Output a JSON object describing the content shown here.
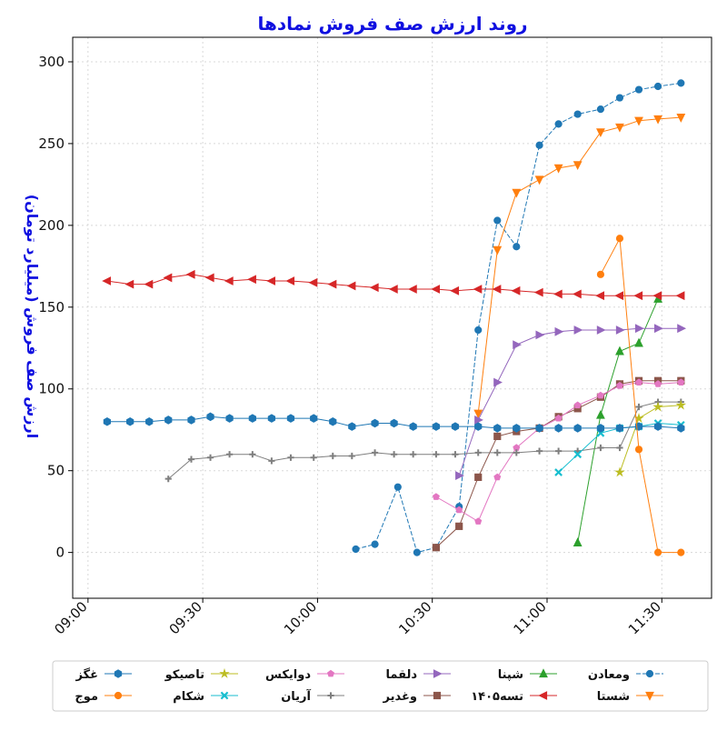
{
  "chart_data": {
    "type": "line",
    "title": "روند ارزش صف فروش نمادها",
    "ylabel": "ارزش صف فروش (میلیارد تومان)",
    "xlabel": "",
    "ylim": [
      -28,
      315
    ],
    "xlim": [
      "08:56",
      "11:43"
    ],
    "x_ticks": [
      "09:00",
      "09:30",
      "10:00",
      "10:30",
      "11:00",
      "11:30"
    ],
    "y_ticks": [
      0,
      50,
      100,
      150,
      200,
      250,
      300
    ],
    "grid": true,
    "legend_position": "bottom",
    "series": [
      {
        "name": "ومعادن",
        "color": "#1f77b4",
        "marker": "circle",
        "dashed": true,
        "points": [
          [
            "10:10",
            2
          ],
          [
            "10:15",
            5
          ],
          [
            "10:21",
            40
          ],
          [
            "10:26",
            0
          ],
          [
            "10:31",
            3
          ],
          [
            "10:37",
            28
          ],
          [
            "10:42",
            136
          ],
          [
            "10:47",
            203
          ],
          [
            "10:52",
            187
          ],
          [
            "10:58",
            249
          ],
          [
            "11:03",
            262
          ],
          [
            "11:08",
            268
          ],
          [
            "11:14",
            271
          ],
          [
            "11:19",
            278
          ],
          [
            "11:24",
            283
          ],
          [
            "11:29",
            285
          ],
          [
            "11:35",
            287
          ]
        ]
      },
      {
        "name": "شستا",
        "color": "#ff7f0e",
        "marker": "triangle-down",
        "dashed": false,
        "points": [
          [
            "10:42",
            85
          ],
          [
            "10:47",
            185
          ],
          [
            "10:52",
            220
          ],
          [
            "10:58",
            228
          ],
          [
            "11:03",
            235
          ],
          [
            "11:08",
            237
          ],
          [
            "11:14",
            257
          ],
          [
            "11:19",
            260
          ],
          [
            "11:24",
            264
          ],
          [
            "11:29",
            265
          ],
          [
            "11:35",
            266
          ]
        ]
      },
      {
        "name": "شپنا",
        "color": "#2ca02c",
        "marker": "triangle-up",
        "dashed": false,
        "points": [
          [
            "11:08",
            6
          ],
          [
            "11:14",
            84
          ],
          [
            "11:19",
            123
          ],
          [
            "11:24",
            128
          ],
          [
            "11:29",
            155
          ]
        ]
      },
      {
        "name": "تسه۱۴۰۵",
        "color": "#d62728",
        "marker": "triangle-left",
        "dashed": false,
        "points": [
          [
            "09:05",
            166
          ],
          [
            "09:11",
            164
          ],
          [
            "09:16",
            164
          ],
          [
            "09:21",
            168
          ],
          [
            "09:27",
            170
          ],
          [
            "09:32",
            168
          ],
          [
            "09:37",
            166
          ],
          [
            "09:43",
            167
          ],
          [
            "09:48",
            166
          ],
          [
            "09:53",
            166
          ],
          [
            "09:59",
            165
          ],
          [
            "10:04",
            164
          ],
          [
            "10:09",
            163
          ],
          [
            "10:15",
            162
          ],
          [
            "10:20",
            161
          ],
          [
            "10:25",
            161
          ],
          [
            "10:31",
            161
          ],
          [
            "10:36",
            160
          ],
          [
            "10:42",
            161
          ],
          [
            "10:47",
            161
          ],
          [
            "10:52",
            160
          ],
          [
            "10:58",
            159
          ],
          [
            "11:03",
            158
          ],
          [
            "11:08",
            158
          ],
          [
            "11:14",
            157
          ],
          [
            "11:19",
            157
          ],
          [
            "11:24",
            157
          ],
          [
            "11:29",
            157
          ],
          [
            "11:35",
            157
          ]
        ]
      },
      {
        "name": "دلقما",
        "color": "#9467bd",
        "marker": "triangle-right",
        "dashed": false,
        "points": [
          [
            "10:37",
            47
          ],
          [
            "10:42",
            81
          ],
          [
            "10:47",
            104
          ],
          [
            "10:52",
            127
          ],
          [
            "10:58",
            133
          ],
          [
            "11:03",
            135
          ],
          [
            "11:08",
            136
          ],
          [
            "11:14",
            136
          ],
          [
            "11:19",
            136
          ],
          [
            "11:24",
            137
          ],
          [
            "11:29",
            137
          ],
          [
            "11:35",
            137
          ]
        ]
      },
      {
        "name": "وغدیر",
        "color": "#8c564b",
        "marker": "square",
        "dashed": false,
        "points": [
          [
            "10:31",
            3
          ],
          [
            "10:37",
            16
          ],
          [
            "10:42",
            46
          ],
          [
            "10:47",
            71
          ],
          [
            "10:52",
            74
          ],
          [
            "10:58",
            76
          ],
          [
            "11:03",
            83
          ],
          [
            "11:08",
            88
          ],
          [
            "11:14",
            95
          ],
          [
            "11:19",
            103
          ],
          [
            "11:24",
            105
          ],
          [
            "11:29",
            105
          ],
          [
            "11:35",
            105
          ]
        ]
      },
      {
        "name": "دوایکس",
        "color": "#e377c2",
        "marker": "pentagon",
        "dashed": false,
        "points": [
          [
            "10:31",
            34
          ],
          [
            "10:37",
            26
          ],
          [
            "10:42",
            19
          ],
          [
            "10:47",
            46
          ],
          [
            "10:52",
            64
          ],
          [
            "10:58",
            76
          ],
          [
            "11:03",
            82
          ],
          [
            "11:08",
            90
          ],
          [
            "11:14",
            96
          ],
          [
            "11:19",
            102
          ],
          [
            "11:24",
            104
          ],
          [
            "11:29",
            103
          ],
          [
            "11:35",
            104
          ]
        ]
      },
      {
        "name": "آریان",
        "color": "#7f7f7f",
        "marker": "plus",
        "dashed": false,
        "points": [
          [
            "09:21",
            45
          ],
          [
            "09:27",
            57
          ],
          [
            "09:32",
            58
          ],
          [
            "09:37",
            60
          ],
          [
            "09:43",
            60
          ],
          [
            "09:48",
            56
          ],
          [
            "09:53",
            58
          ],
          [
            "09:59",
            58
          ],
          [
            "10:04",
            59
          ],
          [
            "10:09",
            59
          ],
          [
            "10:15",
            61
          ],
          [
            "10:20",
            60
          ],
          [
            "10:25",
            60
          ],
          [
            "10:31",
            60
          ],
          [
            "10:36",
            60
          ],
          [
            "10:42",
            61
          ],
          [
            "10:47",
            61
          ],
          [
            "10:52",
            61
          ],
          [
            "10:58",
            62
          ],
          [
            "11:03",
            62
          ],
          [
            "11:08",
            62
          ],
          [
            "11:14",
            64
          ],
          [
            "11:19",
            64
          ],
          [
            "11:24",
            89
          ],
          [
            "11:29",
            92
          ],
          [
            "11:35",
            92
          ]
        ]
      },
      {
        "name": "تاصیکو",
        "color": "#bcbd22",
        "marker": "star",
        "dashed": false,
        "points": [
          [
            "11:19",
            49
          ],
          [
            "11:24",
            82
          ],
          [
            "11:29",
            89
          ],
          [
            "11:35",
            90
          ]
        ]
      },
      {
        "name": "شکام",
        "color": "#17becf",
        "marker": "x",
        "dashed": false,
        "points": [
          [
            "11:03",
            49
          ],
          [
            "11:08",
            60
          ],
          [
            "11:14",
            73
          ],
          [
            "11:19",
            76
          ],
          [
            "11:24",
            77
          ],
          [
            "11:29",
            79
          ],
          [
            "11:35",
            78
          ]
        ]
      },
      {
        "name": "غگز",
        "color": "#1f77b4",
        "marker": "hexagon",
        "dashed": false,
        "points": [
          [
            "09:05",
            80
          ],
          [
            "09:11",
            80
          ],
          [
            "09:16",
            80
          ],
          [
            "09:21",
            81
          ],
          [
            "09:27",
            81
          ],
          [
            "09:32",
            83
          ],
          [
            "09:37",
            82
          ],
          [
            "09:43",
            82
          ],
          [
            "09:48",
            82
          ],
          [
            "09:53",
            82
          ],
          [
            "09:59",
            82
          ],
          [
            "10:04",
            80
          ],
          [
            "10:09",
            77
          ],
          [
            "10:15",
            79
          ],
          [
            "10:20",
            79
          ],
          [
            "10:25",
            77
          ],
          [
            "10:31",
            77
          ],
          [
            "10:36",
            77
          ],
          [
            "10:42",
            77
          ],
          [
            "10:47",
            76
          ],
          [
            "10:52",
            76
          ],
          [
            "10:58",
            76
          ],
          [
            "11:03",
            76
          ],
          [
            "11:08",
            76
          ],
          [
            "11:14",
            76
          ],
          [
            "11:19",
            76
          ],
          [
            "11:24",
            77
          ],
          [
            "11:29",
            77
          ],
          [
            "11:35",
            76
          ]
        ]
      },
      {
        "name": "موج",
        "color": "#ff7f0e",
        "marker": "circle",
        "dashed": false,
        "points": [
          [
            "11:14",
            170
          ],
          [
            "11:19",
            192
          ],
          [
            "11:24",
            63
          ],
          [
            "11:29",
            0
          ],
          [
            "11:35",
            0
          ]
        ]
      }
    ]
  }
}
